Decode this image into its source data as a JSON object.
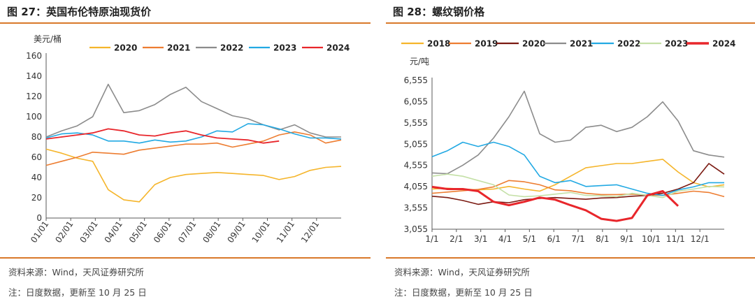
{
  "left": {
    "title": "图 27：英国布伦特原油现货价",
    "source": "资料来源：Wind，天风证券研究所",
    "note": "注：日度数据，更新至 10 月 25 日"
  },
  "right": {
    "title": "图 28：螺纹钢价格",
    "source": "资料来源：Wind，天风证券研究所",
    "note": "注：日度数据，更新至 10 月 25 日"
  },
  "chart_data": [
    {
      "type": "line",
      "unit": "美元/桶",
      "x_ticks": [
        "01/01",
        "02/01",
        "03/01",
        "04/01",
        "05/01",
        "06/01",
        "07/01",
        "08/01",
        "09/01",
        "10/01",
        "11/01",
        "12/01"
      ],
      "ylim": [
        0,
        160
      ],
      "y_ticks": [
        0,
        20,
        40,
        60,
        80,
        100,
        120,
        140,
        160
      ],
      "legend_position": "top",
      "series": [
        {
          "name": "2020",
          "color": "#f5b52b",
          "values": [
            68,
            64,
            59,
            56,
            28,
            18,
            16,
            33,
            40,
            43,
            44,
            45,
            44,
            43,
            42,
            38,
            41,
            47,
            50,
            51
          ]
        },
        {
          "name": "2021",
          "color": "#ed7d31",
          "values": [
            52,
            56,
            60,
            65,
            64,
            63,
            67,
            69,
            71,
            73,
            73,
            74,
            70,
            73,
            76,
            82,
            85,
            82,
            74,
            77
          ]
        },
        {
          "name": "2022",
          "color": "#8c8c8c",
          "values": [
            80,
            86,
            91,
            100,
            132,
            104,
            106,
            112,
            122,
            129,
            115,
            108,
            101,
            98,
            92,
            87,
            92,
            84,
            80,
            80
          ]
        },
        {
          "name": "2023",
          "color": "#22a9e3",
          "values": [
            79,
            83,
            84,
            82,
            76,
            76,
            74,
            77,
            75,
            76,
            80,
            86,
            85,
            93,
            92,
            88,
            83,
            79,
            79,
            78
          ]
        },
        {
          "name": "2024",
          "color": "#e8262b",
          "values": [
            78,
            80,
            82,
            84,
            88,
            86,
            82,
            81,
            84,
            86,
            82,
            79,
            78,
            77,
            74,
            76
          ]
        }
      ]
    },
    {
      "type": "line",
      "unit": "元/吨",
      "x_ticks": [
        "1/1",
        "2/1",
        "3/1",
        "4/1",
        "5/1",
        "6/1",
        "7/1",
        "8/1",
        "9/1",
        "10/1",
        "11/1",
        "12/1"
      ],
      "ylim": [
        3055,
        6555
      ],
      "y_ticks": [
        3055,
        3555,
        4055,
        4555,
        5055,
        5555,
        6055,
        6555
      ],
      "legend_position": "top",
      "series": [
        {
          "name": "2018",
          "color": "#f5b52b",
          "values": [
            4000,
            4020,
            4000,
            3980,
            4000,
            4060,
            4000,
            3950,
            4100,
            4300,
            4500,
            4550,
            4600,
            4600,
            4650,
            4700,
            4400,
            4150,
            4050,
            4100
          ]
        },
        {
          "name": "2019",
          "color": "#ed7d31",
          "values": [
            3900,
            3930,
            3960,
            3990,
            4050,
            4200,
            4170,
            4100,
            3980,
            3960,
            3900,
            3870,
            3870,
            3880,
            3860,
            3850,
            3900,
            3950,
            3920,
            3820
          ]
        },
        {
          "name": "2020",
          "color": "#7b1a12",
          "values": [
            3830,
            3800,
            3730,
            3640,
            3700,
            3680,
            3750,
            3780,
            3800,
            3780,
            3760,
            3790,
            3800,
            3830,
            3850,
            3900,
            4000,
            4150,
            4600,
            4350
          ]
        },
        {
          "name": "2021",
          "color": "#8c8c8c",
          "values": [
            4380,
            4360,
            4560,
            4800,
            5200,
            5700,
            6300,
            5300,
            5100,
            5150,
            5450,
            5500,
            5350,
            5450,
            5700,
            6050,
            5600,
            4900,
            4800,
            4750
          ]
        },
        {
          "name": "2022",
          "color": "#22a9e3",
          "values": [
            4760,
            4900,
            5100,
            5000,
            5100,
            5000,
            4800,
            4300,
            4150,
            4200,
            4060,
            4080,
            4100,
            4000,
            3900,
            3850,
            3980,
            4050,
            4150,
            4150
          ]
        },
        {
          "name": "2023",
          "color": "#c4e0a6",
          "values": [
            4300,
            4350,
            4300,
            4200,
            4100,
            3860,
            3820,
            3840,
            3880,
            3920,
            3850,
            3840,
            3820,
            3900,
            3850,
            3800,
            3950,
            4000,
            4060,
            4050
          ]
        },
        {
          "name": "2024",
          "color": "#e8262b",
          "values": [
            4050,
            4000,
            4000,
            3950,
            3700,
            3620,
            3700,
            3800,
            3750,
            3620,
            3500,
            3300,
            3250,
            3320,
            3850,
            3950,
            3600
          ]
        }
      ]
    }
  ]
}
